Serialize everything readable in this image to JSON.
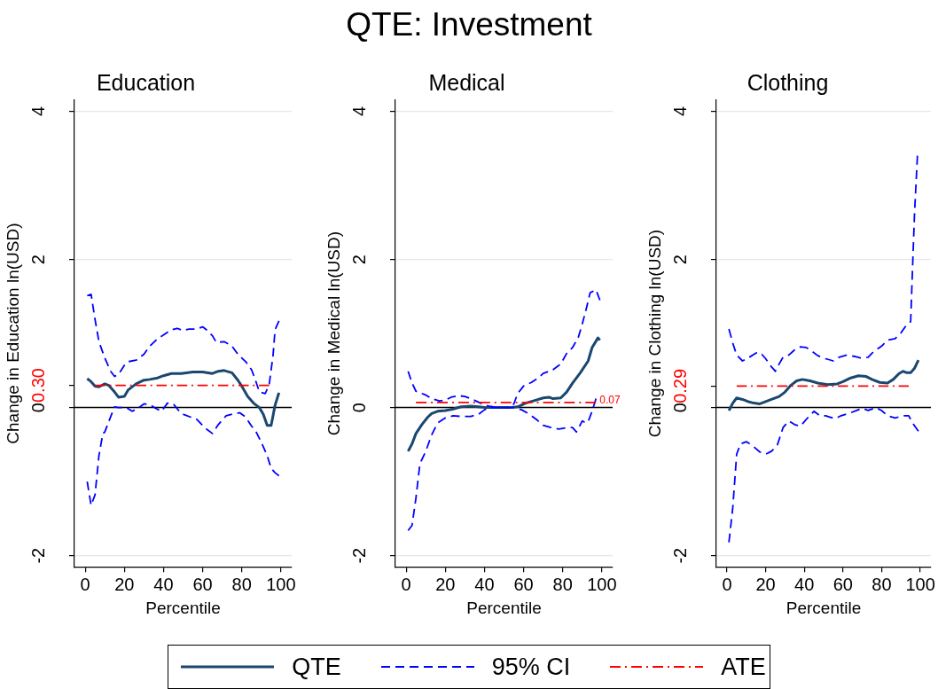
{
  "chart_data": [
    {
      "type": "line",
      "subtitle": "Education",
      "xlabel": "Percentile",
      "ylabel": "Change in Education ln(USD)",
      "xlim": [
        -5.5,
        105.5
      ],
      "xticks": [
        0,
        20,
        40,
        60,
        80,
        100
      ],
      "ylim": [
        -2.15,
        4.15
      ],
      "yticks": [
        -2,
        0,
        {
          "value": 0.3,
          "label": "0.30"
        },
        2,
        4
      ],
      "grid": "y",
      "legend": "bottom",
      "ref_lines": [
        {
          "axis": "y",
          "value": 0,
          "color": "#000000"
        }
      ],
      "series": [
        {
          "name": "QTE",
          "color": "#1a476f",
          "line_style": "solid",
          "x": [
            1,
            3,
            5,
            7,
            10,
            12,
            15,
            17,
            20,
            22,
            26,
            30,
            33,
            37,
            40,
            44,
            49,
            55,
            60,
            65,
            68,
            71,
            75,
            78,
            80,
            83,
            86,
            89,
            91,
            93,
            95,
            97,
            99
          ],
          "values": [
            0.39,
            0.35,
            0.29,
            0.28,
            0.32,
            0.3,
            0.21,
            0.14,
            0.15,
            0.24,
            0.32,
            0.37,
            0.38,
            0.4,
            0.43,
            0.46,
            0.46,
            0.48,
            0.48,
            0.46,
            0.49,
            0.5,
            0.47,
            0.37,
            0.29,
            0.15,
            0.06,
            0.0,
            -0.09,
            -0.24,
            -0.24,
            0.03,
            0.2
          ]
        },
        {
          "name": "95% CI",
          "color": "#0000ff",
          "line_style": "dashed",
          "x": [
            1,
            3,
            5,
            7,
            10,
            13,
            15,
            17,
            20,
            22,
            26,
            30,
            33,
            37,
            40,
            44,
            47,
            50,
            53,
            57,
            60,
            62,
            65,
            67,
            71,
            75,
            78,
            82,
            85,
            87,
            89,
            92,
            94,
            96,
            97,
            99
          ],
          "values": [
            1.51,
            1.53,
            1.19,
            0.89,
            0.67,
            0.49,
            0.42,
            0.45,
            0.57,
            0.62,
            0.64,
            0.72,
            0.83,
            0.93,
            0.98,
            1.05,
            1.07,
            1.04,
            1.06,
            1.06,
            1.09,
            1.05,
            0.97,
            0.88,
            0.89,
            0.83,
            0.72,
            0.62,
            0.51,
            0.37,
            0.21,
            0.19,
            0.31,
            0.71,
            1.05,
            1.17
          ]
        },
        {
          "color": "#0000ff",
          "line_style": "dashed",
          "x": [
            1,
            3,
            5,
            7,
            9,
            10,
            12,
            15,
            17,
            21,
            24,
            27,
            30,
            33,
            36,
            39,
            42,
            45,
            49,
            54,
            57,
            61,
            65,
            68,
            72,
            75,
            79,
            82,
            85,
            87,
            90,
            93,
            95,
            97,
            99
          ],
          "values": [
            -1.0,
            -1.32,
            -1.18,
            -0.65,
            -0.35,
            -0.33,
            -0.19,
            0.01,
            0.0,
            0.0,
            -0.05,
            -0.01,
            0.05,
            0.04,
            -0.01,
            -0.05,
            0.06,
            0.05,
            -0.08,
            -0.13,
            -0.16,
            -0.27,
            -0.35,
            -0.23,
            -0.11,
            -0.09,
            -0.07,
            -0.13,
            -0.25,
            -0.31,
            -0.47,
            -0.65,
            -0.82,
            -0.88,
            -0.92
          ]
        },
        {
          "name": "ATE",
          "color": "#ff0000",
          "line_style": "dashdot",
          "x": [
            5,
            94
          ],
          "values": [
            0.3,
            0.3
          ]
        }
      ]
    },
    {
      "type": "line",
      "title": "QTE: Investment",
      "subtitle": "Medical",
      "xlabel": "Percentile",
      "ylabel": "Change in Medical ln(USD)",
      "xlim": [
        -5.5,
        105.5
      ],
      "xticks": [
        0,
        20,
        40,
        60,
        80,
        100
      ],
      "ylim": [
        -2.15,
        4.15
      ],
      "yticks": [
        -2,
        0,
        2,
        4
      ],
      "grid": "y",
      "ref_lines": [
        {
          "axis": "y",
          "value": 0,
          "color": "#000000"
        }
      ],
      "series": [
        {
          "name": "QTE",
          "color": "#1a476f",
          "line_style": "solid",
          "x": [
            1,
            3,
            5,
            8,
            11,
            13,
            16,
            20,
            24,
            28,
            33,
            37,
            41,
            47,
            53,
            57,
            61,
            65,
            70,
            73,
            75,
            79,
            82,
            85,
            89,
            93,
            95,
            98,
            99
          ],
          "values": [
            -0.59,
            -0.49,
            -0.35,
            -0.23,
            -0.13,
            -0.08,
            -0.05,
            -0.04,
            -0.02,
            0.01,
            0.02,
            0.01,
            0.0,
            0.0,
            0.0,
            0.01,
            0.06,
            0.09,
            0.13,
            0.14,
            0.12,
            0.13,
            0.21,
            0.33,
            0.47,
            0.63,
            0.81,
            0.94,
            0.91
          ]
        },
        {
          "name": "95% CI",
          "color": "#0000ff",
          "line_style": "dashed",
          "x": [
            1,
            3,
            5,
            10,
            13,
            17,
            20,
            23,
            27,
            30,
            34,
            38,
            42,
            47,
            53,
            55,
            57,
            60,
            64,
            68,
            70,
            75,
            79,
            82,
            85,
            88,
            90,
            92,
            94,
            97,
            99
          ],
          "values": [
            0.49,
            0.33,
            0.22,
            0.17,
            0.12,
            0.09,
            0.1,
            0.14,
            0.16,
            0.15,
            0.11,
            0.06,
            0.02,
            0.0,
            0.0,
            0.05,
            0.19,
            0.29,
            0.34,
            0.41,
            0.46,
            0.51,
            0.59,
            0.73,
            0.81,
            0.95,
            1.13,
            1.33,
            1.55,
            1.59,
            1.45
          ]
        },
        {
          "color": "#0000ff",
          "line_style": "dashed",
          "x": [
            1,
            3,
            5,
            7,
            10,
            13,
            16,
            20,
            24,
            28,
            33,
            37,
            40,
            43,
            48,
            55,
            59,
            63,
            67,
            70,
            74,
            78,
            83,
            85,
            87,
            89,
            90,
            92,
            93,
            95,
            97
          ],
          "values": [
            -1.66,
            -1.59,
            -1.22,
            -0.76,
            -0.59,
            -0.37,
            -0.21,
            -0.14,
            -0.11,
            -0.12,
            -0.12,
            -0.09,
            -0.03,
            0.0,
            0.0,
            0.0,
            -0.03,
            -0.09,
            -0.17,
            -0.24,
            -0.27,
            -0.29,
            -0.27,
            -0.27,
            -0.33,
            -0.23,
            -0.18,
            -0.21,
            -0.19,
            -0.05,
            0.12
          ]
        },
        {
          "name": "ATE",
          "color": "#ff0000",
          "line_style": "dashdot",
          "x": [
            5,
            97
          ],
          "values": [
            0.07,
            0.07
          ],
          "value_labels": [
            null,
            "0.07"
          ]
        }
      ]
    },
    {
      "type": "line",
      "subtitle": "Clothing",
      "xlabel": "Percentile",
      "ylabel": "Change in Clothing ln(USD)",
      "xlim": [
        -5.5,
        105.5
      ],
      "xticks": [
        0,
        20,
        40,
        60,
        80,
        100
      ],
      "ylim": [
        -2.15,
        4.15
      ],
      "yticks": [
        -2,
        0,
        {
          "value": 0.29,
          "label": "0.29"
        },
        2,
        4
      ],
      "grid": "y",
      "ref_lines": [
        {
          "axis": "y",
          "value": 0,
          "color": "#000000"
        }
      ],
      "series": [
        {
          "name": "QTE",
          "color": "#1a476f",
          "line_style": "solid",
          "x": [
            1,
            3,
            5,
            8,
            11,
            14,
            17,
            20,
            23,
            27,
            30,
            33,
            36,
            39,
            43,
            47,
            52,
            57,
            60,
            64,
            68,
            72,
            75,
            79,
            83,
            86,
            89,
            91,
            93,
            95,
            97,
            99
          ],
          "values": [
            -0.04,
            0.06,
            0.13,
            0.11,
            0.08,
            0.06,
            0.05,
            0.08,
            0.11,
            0.15,
            0.21,
            0.3,
            0.36,
            0.38,
            0.36,
            0.33,
            0.31,
            0.32,
            0.35,
            0.4,
            0.43,
            0.42,
            0.38,
            0.34,
            0.33,
            0.38,
            0.46,
            0.49,
            0.47,
            0.47,
            0.53,
            0.64
          ]
        },
        {
          "name": "95% CI",
          "color": "#0000ff",
          "line_style": "dashed",
          "x": [
            1,
            3,
            5,
            8,
            11,
            14,
            16,
            18,
            20,
            23,
            25,
            27,
            29,
            32,
            35,
            38,
            41,
            44,
            47,
            51,
            55,
            58,
            62,
            66,
            69,
            73,
            76,
            80,
            83,
            87,
            90,
            93,
            95,
            96,
            97,
            98.5
          ],
          "values": [
            1.06,
            0.87,
            0.71,
            0.63,
            0.67,
            0.72,
            0.75,
            0.72,
            0.66,
            0.55,
            0.49,
            0.59,
            0.68,
            0.71,
            0.78,
            0.82,
            0.81,
            0.76,
            0.7,
            0.66,
            0.63,
            0.68,
            0.71,
            0.69,
            0.67,
            0.68,
            0.76,
            0.83,
            0.91,
            0.93,
            1.01,
            1.12,
            1.16,
            1.9,
            2.62,
            3.4
          ]
        },
        {
          "color": "#0000ff",
          "line_style": "dashed",
          "x": [
            1,
            3,
            5,
            7,
            10,
            13,
            17,
            20,
            23,
            26,
            29,
            32,
            35,
            38,
            42,
            45,
            48,
            51,
            56,
            59,
            63,
            67,
            70,
            73,
            77,
            80,
            83,
            87,
            91,
            94,
            96,
            99
          ],
          "values": [
            -1.82,
            -1.35,
            -0.63,
            -0.49,
            -0.46,
            -0.51,
            -0.6,
            -0.63,
            -0.59,
            -0.51,
            -0.27,
            -0.18,
            -0.23,
            -0.25,
            -0.13,
            -0.05,
            -0.11,
            -0.11,
            -0.15,
            -0.11,
            -0.08,
            -0.04,
            -0.01,
            -0.04,
            0.0,
            -0.04,
            -0.11,
            -0.14,
            -0.11,
            -0.11,
            -0.21,
            -0.32
          ]
        },
        {
          "name": "ATE",
          "color": "#ff0000",
          "line_style": "dashdot",
          "x": [
            5,
            94
          ],
          "values": [
            0.29,
            0.29
          ]
        }
      ]
    }
  ]
}
